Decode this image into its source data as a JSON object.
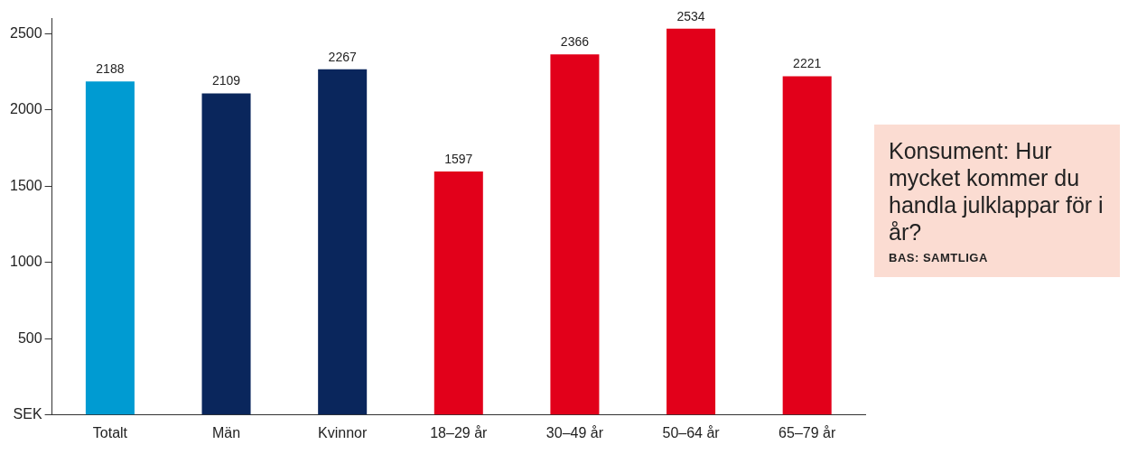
{
  "chart_data": {
    "type": "bar",
    "title": "Konsument: Hur mycket kommer du handla julklappar för i år?",
    "subtitle": "BAS: SAMTLIGA",
    "categories": [
      "Totalt",
      "Män",
      "Kvinnor",
      "18–29 år",
      "30–49 år",
      "50–64 år",
      "65–79 år"
    ],
    "values": [
      2188,
      2109,
      2267,
      1597,
      2366,
      2534,
      2221
    ],
    "colors": [
      "#009bd2",
      "#0a265c",
      "#0a265c",
      "#e2001a",
      "#e2001a",
      "#e2001a",
      "#e2001a"
    ],
    "ylim": [
      0,
      2600
    ],
    "yticks": [
      {
        "value": 0,
        "label": "SEK"
      },
      500,
      1000,
      1500,
      2000,
      2500
    ],
    "grid": false,
    "data_labels": true
  }
}
